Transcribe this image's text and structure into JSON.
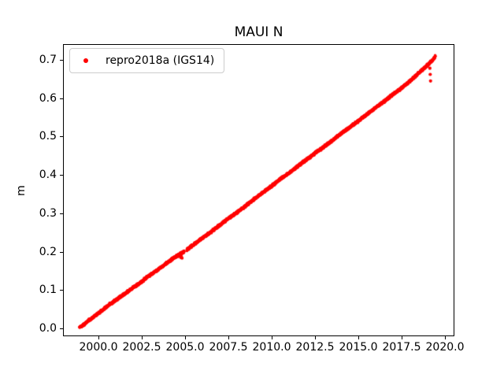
{
  "chart_data": {
    "type": "scatter",
    "title": "MAUI N",
    "xlabel": "",
    "ylabel": "m",
    "xlim": [
      1997.95,
      2020.5
    ],
    "ylim": [
      -0.018,
      0.741
    ],
    "xticks": [
      2000.0,
      2002.5,
      2005.0,
      2007.5,
      2010.0,
      2012.5,
      2015.0,
      2017.5,
      2020.0
    ],
    "xtick_labels": [
      "2000.0",
      "2002.5",
      "2005.0",
      "2007.5",
      "2010.0",
      "2012.5",
      "2015.0",
      "2017.5",
      "2020.0"
    ],
    "yticks": [
      0.0,
      0.1,
      0.2,
      0.3,
      0.4,
      0.5,
      0.6,
      0.7
    ],
    "ytick_labels": [
      "0.0",
      "0.1",
      "0.2",
      "0.3",
      "0.4",
      "0.5",
      "0.6",
      "0.7"
    ],
    "grid": false,
    "background_color": "#ffffff",
    "axes_color": "#000000",
    "legend": {
      "position": "upper-left",
      "border_color": "#cccccc",
      "entries": [
        {
          "label": "repro2018a (IGS14)",
          "marker": "dot-icon",
          "color": "#ff0000"
        }
      ]
    },
    "series": [
      {
        "name": "repro2018a (IGS14)",
        "color": "#ff0000",
        "marker": "circle",
        "x_start": 1998.9,
        "x_end": 2019.45,
        "y_start_m": 0.004,
        "y_end_m": 0.71,
        "slope_m_per_year": 0.0344,
        "noise_sigma_m": 0.0015,
        "points_per_year": 250,
        "trend_anchors": [
          [
            1998.9,
            0.004
          ],
          [
            1999.1,
            0.008
          ],
          [
            1999.4,
            0.02
          ],
          [
            1999.7,
            0.03
          ],
          [
            2000.0,
            0.04
          ],
          [
            2000.5,
            0.058
          ],
          [
            2001.0,
            0.074
          ],
          [
            2001.5,
            0.09
          ],
          [
            2002.0,
            0.107
          ],
          [
            2002.4,
            0.119
          ],
          [
            2002.8,
            0.134
          ],
          [
            2003.2,
            0.146
          ],
          [
            2003.6,
            0.159
          ],
          [
            2004.0,
            0.173
          ],
          [
            2004.4,
            0.186
          ],
          [
            2004.93,
            0.2
          ],
          [
            2005.11,
            0.206
          ],
          [
            2005.5,
            0.219
          ],
          [
            2006.0,
            0.236
          ],
          [
            2006.5,
            0.252
          ],
          [
            2007.0,
            0.27
          ],
          [
            2007.5,
            0.287
          ],
          [
            2008.0,
            0.303
          ],
          [
            2008.5,
            0.32
          ],
          [
            2009.0,
            0.338
          ],
          [
            2009.5,
            0.355
          ],
          [
            2010.0,
            0.371
          ],
          [
            2010.45,
            0.388
          ],
          [
            2010.9,
            0.402
          ],
          [
            2011.4,
            0.419
          ],
          [
            2012.0,
            0.44
          ],
          [
            2012.5,
            0.457
          ],
          [
            2013.0,
            0.473
          ],
          [
            2013.5,
            0.49
          ],
          [
            2014.0,
            0.508
          ],
          [
            2014.5,
            0.524
          ],
          [
            2015.0,
            0.541
          ],
          [
            2015.5,
            0.558
          ],
          [
            2016.0,
            0.576
          ],
          [
            2016.5,
            0.592
          ],
          [
            2017.0,
            0.61
          ],
          [
            2017.5,
            0.627
          ],
          [
            2018.0,
            0.645
          ],
          [
            2018.4,
            0.662
          ],
          [
            2018.8,
            0.678
          ],
          [
            2019.1,
            0.691
          ],
          [
            2019.3,
            0.7
          ],
          [
            2019.45,
            0.71
          ]
        ],
        "gaps": [
          [
            2004.95,
            2005.1
          ]
        ],
        "outliers": [
          [
            2004.7,
            0.189
          ],
          [
            2004.74,
            0.1855
          ],
          [
            2004.78,
            0.1875
          ],
          [
            2004.82,
            0.1835
          ],
          [
            2019.13,
            0.678
          ],
          [
            2019.15,
            0.662
          ],
          [
            2019.17,
            0.645
          ]
        ]
      }
    ]
  }
}
